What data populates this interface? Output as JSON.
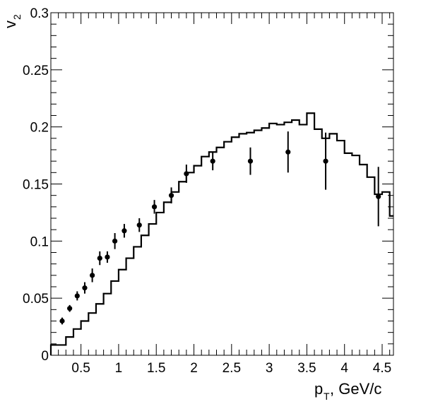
{
  "chart_data": {
    "type": "scatter",
    "xlabel": {
      "main": "p",
      "sub": "T",
      "suffix": ", GeV/c"
    },
    "ylabel": {
      "main": "v",
      "sub": "2"
    },
    "xlim": [
      0.1,
      4.65
    ],
    "ylim": [
      0,
      0.3
    ],
    "x_ticks": [
      0.5,
      1,
      1.5,
      2,
      2.5,
      3,
      3.5,
      4,
      4.5
    ],
    "x_tick_labels": [
      "0.5",
      "1",
      "1.5",
      "2",
      "2.5",
      "3",
      "3.5",
      "4",
      "4.5"
    ],
    "y_ticks": [
      0,
      0.05,
      0.1,
      0.15,
      0.2,
      0.25,
      0.3
    ],
    "y_tick_labels": [
      "0",
      "0.05",
      "0.1",
      "0.15",
      "0.2",
      "0.25",
      "0.3"
    ],
    "grid": false,
    "series": [
      {
        "kind": "points-with-errors",
        "color": "#000000",
        "points": [
          {
            "x": 0.25,
            "y": 0.03,
            "err": 0.003
          },
          {
            "x": 0.35,
            "y": 0.041,
            "err": 0.003
          },
          {
            "x": 0.45,
            "y": 0.052,
            "err": 0.004
          },
          {
            "x": 0.55,
            "y": 0.059,
            "err": 0.005
          },
          {
            "x": 0.65,
            "y": 0.07,
            "err": 0.006
          },
          {
            "x": 0.75,
            "y": 0.085,
            "err": 0.006
          },
          {
            "x": 0.85,
            "y": 0.086,
            "err": 0.005
          },
          {
            "x": 0.95,
            "y": 0.1,
            "err": 0.007
          },
          {
            "x": 1.075,
            "y": 0.109,
            "err": 0.006
          },
          {
            "x": 1.275,
            "y": 0.114,
            "err": 0.006
          },
          {
            "x": 1.475,
            "y": 0.13,
            "err": 0.006
          },
          {
            "x": 1.7,
            "y": 0.14,
            "err": 0.007
          },
          {
            "x": 1.9,
            "y": 0.159,
            "err": 0.008
          },
          {
            "x": 2.25,
            "y": 0.17,
            "err": 0.008
          },
          {
            "x": 2.75,
            "y": 0.17,
            "err": 0.012
          },
          {
            "x": 3.25,
            "y": 0.178,
            "err": 0.018
          },
          {
            "x": 3.75,
            "y": 0.17,
            "err": 0.025
          },
          {
            "x": 4.45,
            "y": 0.139,
            "err": 0.026
          }
        ]
      },
      {
        "kind": "histogram-step",
        "color": "#000000",
        "bin_width": 0.1,
        "x_start": 0.1,
        "values": [
          0.009,
          0.009,
          0.016,
          0.023,
          0.03,
          0.037,
          0.045,
          0.054,
          0.065,
          0.075,
          0.085,
          0.095,
          0.105,
          0.115,
          0.125,
          0.134,
          0.143,
          0.152,
          0.16,
          0.166,
          0.174,
          0.178,
          0.182,
          0.187,
          0.191,
          0.194,
          0.195,
          0.197,
          0.199,
          0.203,
          0.202,
          0.204,
          0.206,
          0.202,
          0.212,
          0.198,
          0.19,
          0.194,
          0.188,
          0.177,
          0.175,
          0.167,
          0.156,
          0.141,
          0.143,
          0.122,
          0.121,
          0.121
        ]
      }
    ]
  }
}
